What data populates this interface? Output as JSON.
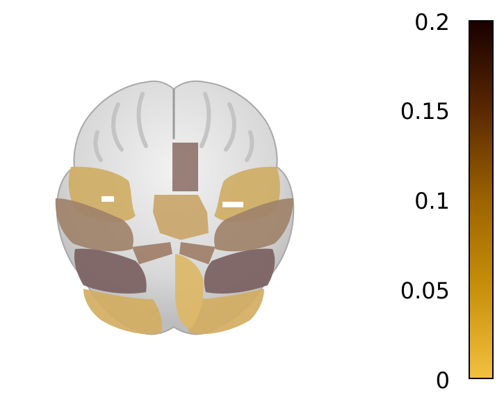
{
  "brain_slice": {
    "label": "axial brain slice with overlaid atlas regions",
    "colors": {
      "background_tissue": "#d4d4d4",
      "tissue_highlight": "#eeeeee",
      "low_value": "#d8b562",
      "mid_value": "#a0866a",
      "high_value": "#7d6363"
    }
  },
  "colorbar": {
    "min": 0,
    "max": 0.2,
    "ticks": [
      "0.2",
      "0.15",
      "0.1",
      "0.05",
      "0"
    ],
    "gradient": [
      "#1a0000",
      "#5a2800",
      "#9c6300",
      "#c8900a",
      "#f2c040"
    ]
  }
}
